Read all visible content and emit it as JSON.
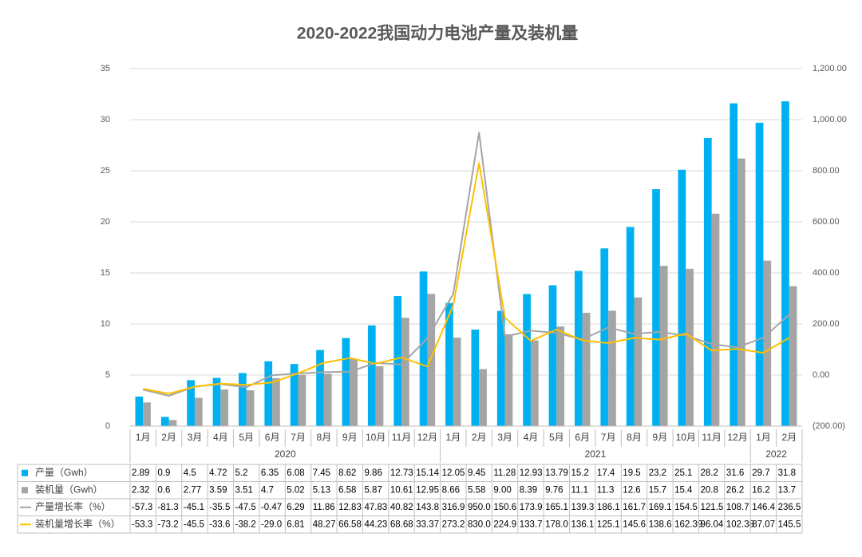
{
  "chart_data": {
    "type": "bar",
    "title": "2020-2022我国动力电池产量及装机量",
    "category_groups": [
      {
        "name": "2020",
        "categories": [
          "1月",
          "2月",
          "3月",
          "4月",
          "5月",
          "6月",
          "7月",
          "8月",
          "9月",
          "10月",
          "11月",
          "12月"
        ]
      },
      {
        "name": "2021",
        "categories": [
          "1月",
          "2月",
          "3月",
          "4月",
          "5月",
          "6月",
          "7月",
          "8月",
          "9月",
          "10月",
          "11月",
          "12月"
        ]
      },
      {
        "name": "2022",
        "categories": [
          "1月",
          "2月"
        ]
      }
    ],
    "series": [
      {
        "name": "产量（Gwh）",
        "type": "bar",
        "color": "#00b0f0",
        "values": [
          2.89,
          0.9,
          4.5,
          4.72,
          5.2,
          6.35,
          6.08,
          7.45,
          8.62,
          9.86,
          12.73,
          15.14,
          12.05,
          9.45,
          11.28,
          12.93,
          13.79,
          15.2,
          17.4,
          19.5,
          23.2,
          25.1,
          28.2,
          31.6,
          29.7,
          31.8
        ],
        "value_labels": [
          "2.89",
          "0.9",
          "4.5",
          "4.72",
          "5.2",
          "6.35",
          "6.08",
          "7.45",
          "8.62",
          "9.86",
          "12.73",
          "15.14",
          "12.05",
          "9.45",
          "11.28",
          "12.93",
          "13.79",
          "15.2",
          "17.4",
          "19.5",
          "23.2",
          "25.1",
          "28.2",
          "31.6",
          "29.7",
          "31.8"
        ]
      },
      {
        "name": "装机量（Gwh）",
        "type": "bar",
        "color": "#a5a5a5",
        "values": [
          2.32,
          0.6,
          2.77,
          3.59,
          3.51,
          4.7,
          5.02,
          5.13,
          6.58,
          5.87,
          10.61,
          12.95,
          8.66,
          5.58,
          9,
          8.39,
          9.76,
          11.1,
          11.3,
          12.6,
          15.7,
          15.4,
          20.8,
          26.2,
          16.2,
          13.7
        ],
        "value_labels": [
          "2.32",
          "0.6",
          "2.77",
          "3.59",
          "3.51",
          "4.7",
          "5.02",
          "5.13",
          "6.58",
          "5.87",
          "10.61",
          "12.95",
          "8.66",
          "5.58",
          "9.00",
          "8.39",
          "9.76",
          "11.1",
          "11.3",
          "12.6",
          "15.7",
          "15.4",
          "20.8",
          "26.2",
          "16.2",
          "13.7"
        ]
      },
      {
        "name": "产量增长率（%）",
        "type": "line",
        "axis": "y2",
        "color": "#a5a5a5",
        "values": [
          -57.3,
          -81.3,
          -45.1,
          -35.5,
          -47.5,
          -0.47,
          6.29,
          11.86,
          12.83,
          47.83,
          40.82,
          143.8,
          316.9,
          950,
          150.6,
          173.9,
          165.1,
          139.3,
          186.1,
          161.7,
          169.1,
          154.5,
          121.5,
          108.7,
          146.4,
          236.5
        ],
        "value_labels": [
          "-57.3",
          "-81.3",
          "-45.1",
          "-35.5",
          "-47.5",
          "-0.47",
          "6.29",
          "11.86",
          "12.83",
          "47.83",
          "40.82",
          "143.8",
          "316.9",
          "950.0",
          "150.6",
          "173.9",
          "165.1",
          "139.3",
          "186.1",
          "161.7",
          "169.1",
          "154.5",
          "121.5",
          "108.7",
          "146.4",
          "236.5"
        ]
      },
      {
        "name": "装机量增长率（%）",
        "type": "line",
        "axis": "y2",
        "color": "#ffc000",
        "values": [
          -53.3,
          -73.2,
          -45.5,
          -33.6,
          -38.2,
          -29,
          6.81,
          48.27,
          66.58,
          44.23,
          68.68,
          33.37,
          273.2,
          830,
          224.9,
          133.7,
          178,
          136.1,
          125.1,
          145.6,
          138.6,
          162.39,
          96.04,
          102.38,
          87.07,
          145.5
        ],
        "value_labels": [
          "-53.3",
          "-73.2",
          "-45.5",
          "-33.6",
          "-38.2",
          "-29.0",
          "6.81",
          "48.27",
          "66.58",
          "44.23",
          "68.68",
          "33.37",
          "273.2",
          "830.0",
          "224.9",
          "133.7",
          "178.0",
          "136.1",
          "125.1",
          "145.6",
          "138.6",
          "162.39",
          "96.04",
          "102.38",
          "87.07",
          "145.5"
        ]
      }
    ],
    "ylim": [
      0,
      35
    ],
    "yticks": [
      0,
      5,
      10,
      15,
      20,
      25,
      30,
      35
    ],
    "y2lim": [
      -200,
      1200
    ],
    "y2ticks": [
      {
        "value": -200,
        "label": "(200.00)"
      },
      {
        "value": 0,
        "label": "0.00"
      },
      {
        "value": 200,
        "label": "200.00"
      },
      {
        "value": 400,
        "label": "400.00"
      },
      {
        "value": 600,
        "label": "600.00"
      },
      {
        "value": 800,
        "label": "800.00"
      },
      {
        "value": 1000,
        "label": "1,000.00"
      },
      {
        "value": 1200,
        "label": "1,200.00"
      }
    ],
    "grid": true
  }
}
